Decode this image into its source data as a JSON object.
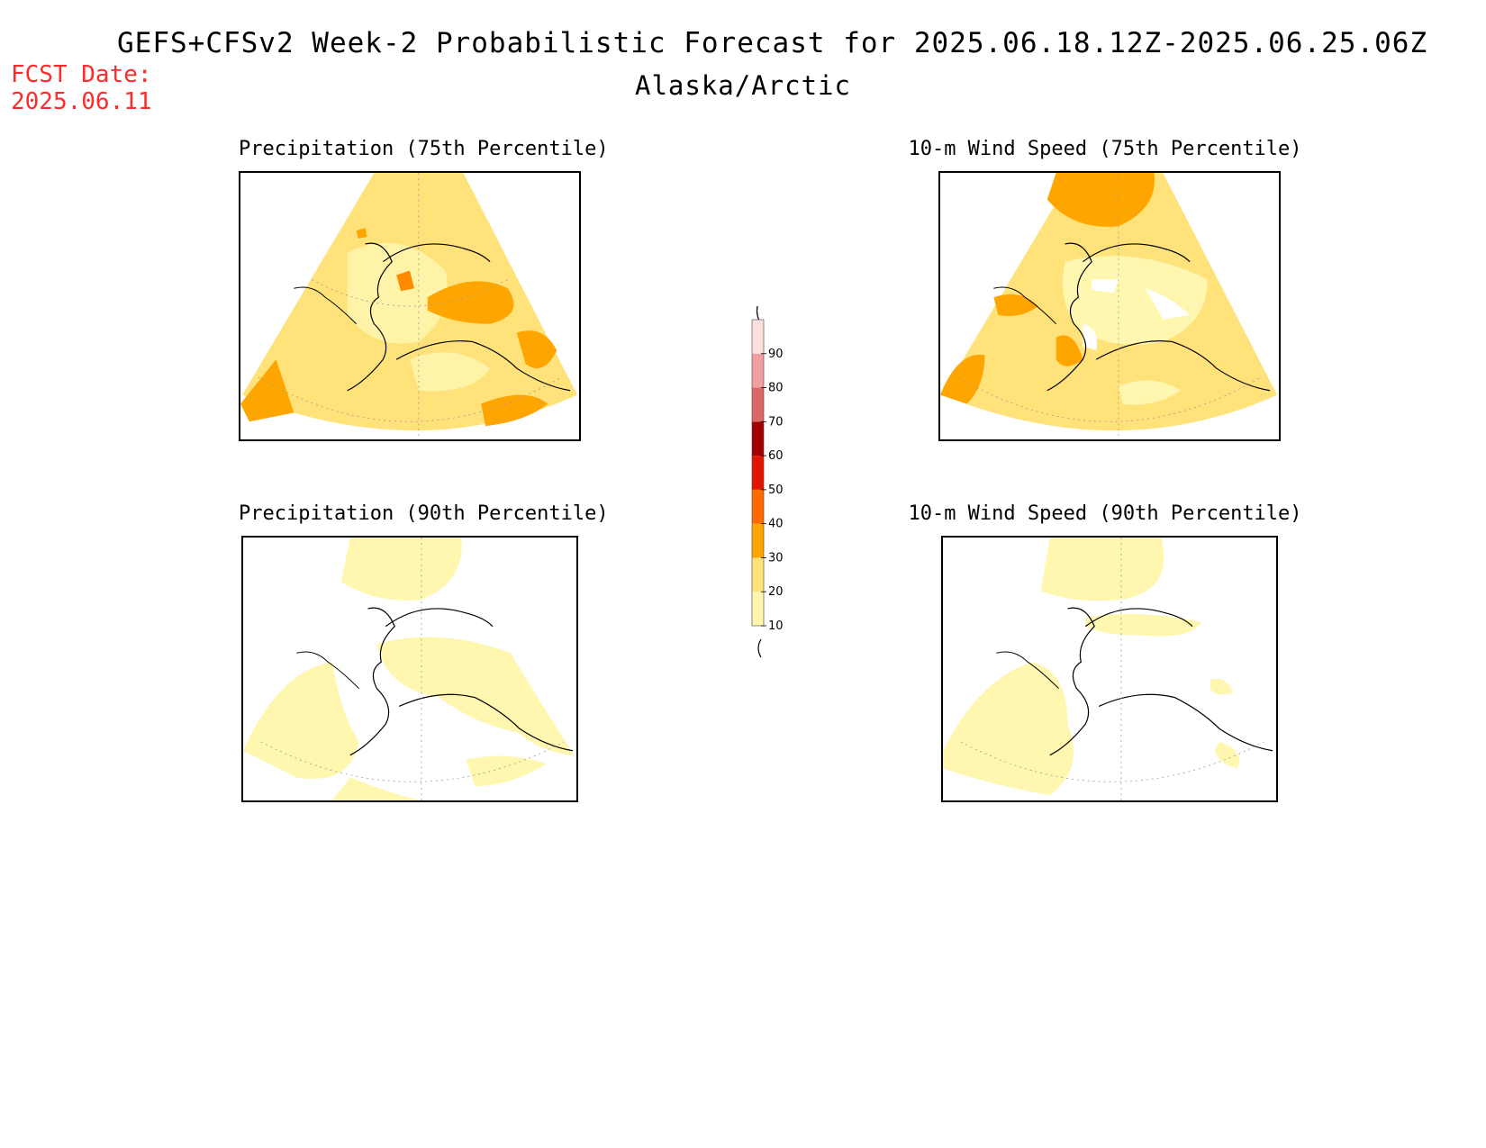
{
  "title": "GEFS+CFSv2 Week-2 Probabilistic Forecast for 2025.06.18.12Z-2025.06.25.06Z",
  "subtitle": "Alaska/Arctic",
  "forecast_date_label": "FCST Date:",
  "forecast_date": "2025.06.11",
  "panels": [
    {
      "title": "Precipitation (75th Percentile)",
      "dominant_color": "#ffe27a"
    },
    {
      "title": "10-m Wind Speed (75th Percentile)",
      "dominant_color": "#ffe27a"
    },
    {
      "title": "Precipitation (90th Percentile)",
      "dominant_color": "#fff6b0"
    },
    {
      "title": "10-m Wind Speed (90th Percentile)",
      "dominant_color": "#fff6b0"
    }
  ],
  "colorbar": {
    "ticks": [
      "10",
      "20",
      "30",
      "40",
      "50",
      "60",
      "70",
      "80",
      "90"
    ],
    "colors": [
      "#fff6b0",
      "#ffe27a",
      "#ffa500",
      "#ff6a00",
      "#e01600",
      "#a00000",
      "#dd6666",
      "#f0a0a0",
      "#fbe0e0"
    ]
  }
}
